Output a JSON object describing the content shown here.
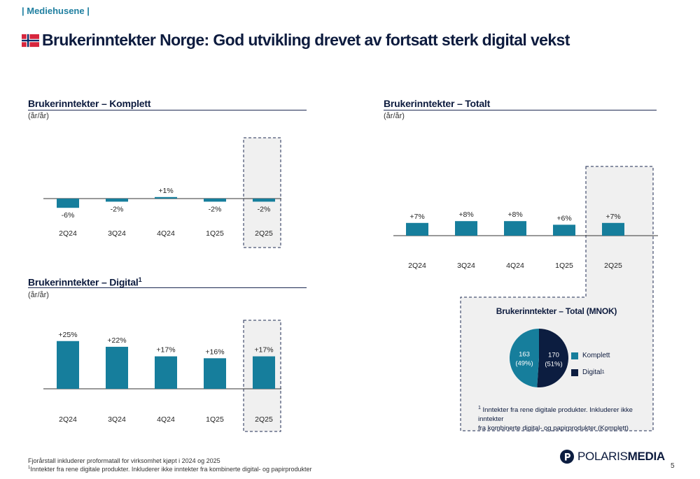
{
  "header": {
    "section_tag": "| Mediehusene |",
    "title": "Brukerinntekter Norge: God utvikling drevet av fortsatt sterk digital vekst",
    "flag_icon": "norway-flag-icon"
  },
  "colors": {
    "bar": "#167e9c",
    "digital": "#0c1d40",
    "highlight_bg": "#f0f0f0",
    "axis": "#333333"
  },
  "charts": {
    "komplett": {
      "title": "Brukerinntekter – Komplett",
      "subtitle": "(år/år)"
    },
    "digital": {
      "title": "Brukerinntekter – Digital",
      "superscript": "1",
      "subtitle": "(år/år)"
    },
    "totalt": {
      "title": "Brukerinntekter – Totalt",
      "subtitle": "(år/år)"
    }
  },
  "pie_box": {
    "title": "Brukerinntekter – Total (MNOK)",
    "slices": [
      {
        "label": "Komplett",
        "value": 163,
        "pct": "(49%)",
        "color": "#167e9c"
      },
      {
        "label": "Digital",
        "value": 170,
        "pct": "(51%)",
        "color": "#0c1d40"
      }
    ],
    "legend_komplett": "Komplett",
    "legend_digital": "Digital",
    "legend_digital_sup": "1",
    "note_sup": "1",
    "note_line1": "Inntekter fra rene digitale produkter. Inkluderer ikke inntekter",
    "note_line2": "fra kombinerte digital- og papirprodukter (Komplett)"
  },
  "footer": {
    "note1": "Fjorårstall inkluderer proformatall for virksomhet kjøpt i 2024 og 2025",
    "note2_sup": "1",
    "note2": "Inntekter fra rene digitale produkter. Inkluderer ikke inntekter fra kombinerte digital- og papirprodukter",
    "logo_text_a": "POLARIS",
    "logo_text_b": "MEDIA",
    "page_number": "5"
  },
  "chart_data": [
    {
      "type": "bar",
      "name": "komplett",
      "categories": [
        "2Q24",
        "3Q24",
        "4Q24",
        "1Q25",
        "2Q25"
      ],
      "values": [
        -6,
        -2,
        1,
        -2,
        -2
      ],
      "labels": [
        "-6%",
        "-2%",
        "+1%",
        "-2%",
        "-2%"
      ],
      "title": "Brukerinntekter – Komplett",
      "highlight": "2Q25"
    },
    {
      "type": "bar",
      "name": "digital",
      "categories": [
        "2Q24",
        "3Q24",
        "4Q24",
        "1Q25",
        "2Q25"
      ],
      "values": [
        25,
        22,
        17,
        16,
        17
      ],
      "labels": [
        "+25%",
        "+22%",
        "+17%",
        "+16%",
        "+17%"
      ],
      "title": "Brukerinntekter – Digital",
      "highlight": "2Q25"
    },
    {
      "type": "bar",
      "name": "totalt",
      "categories": [
        "2Q24",
        "3Q24",
        "4Q24",
        "1Q25",
        "2Q25"
      ],
      "values": [
        7,
        8,
        8,
        6,
        7
      ],
      "labels": [
        "+7%",
        "+8%",
        "+8%",
        "+6%",
        "+7%"
      ],
      "title": "Brukerinntekter – Totalt",
      "highlight": "2Q25"
    },
    {
      "type": "pie",
      "name": "total-mnok",
      "title": "Brukerinntekter – Total (MNOK)",
      "labels": [
        "Komplett",
        "Digital"
      ],
      "values": [
        163,
        170
      ],
      "percentages": [
        49,
        51
      ]
    }
  ]
}
